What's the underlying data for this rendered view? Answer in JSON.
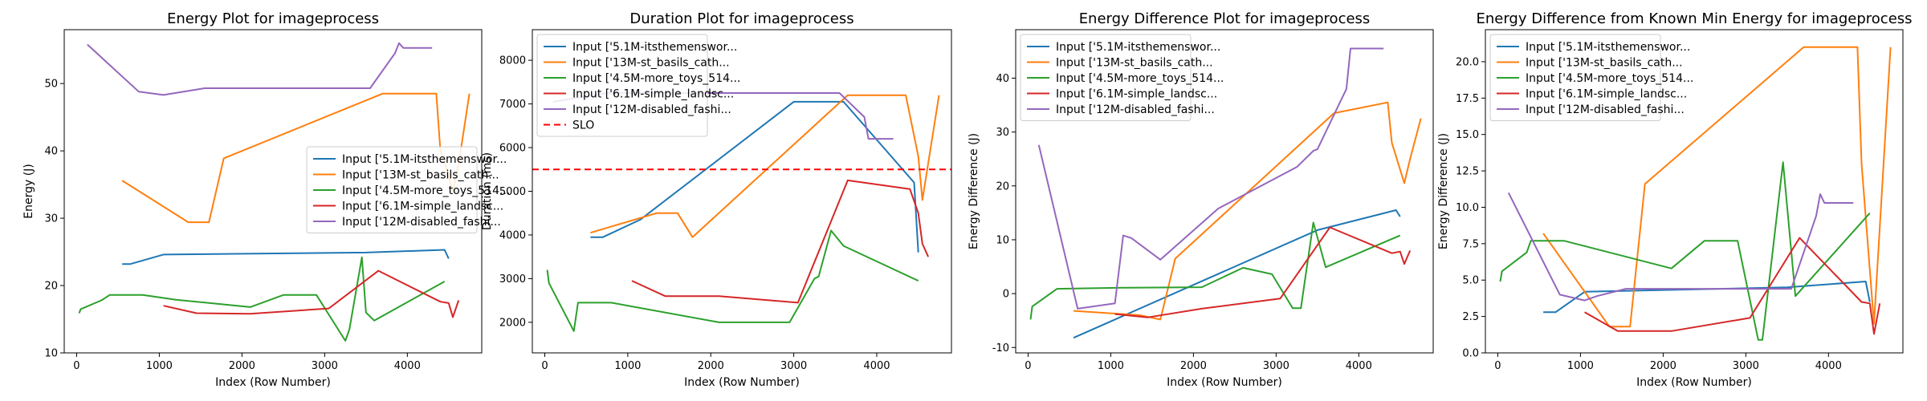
{
  "figure": {
    "name": "imageprocess energy dashboard"
  },
  "chart_data": [
    {
      "type": "line",
      "title": "Energy Plot for imageprocess",
      "xlabel": "Index (Row Number)",
      "ylabel": "Energy (J)",
      "xlim": [
        -150,
        4900
      ],
      "ylim": [
        10,
        58
      ],
      "xticks": [
        0,
        1000,
        2000,
        3000,
        4000
      ],
      "yticks": [
        10,
        20,
        30,
        40,
        50
      ],
      "legend_position": "center-right",
      "series": [
        {
          "name": "Input ['5.1M-itsthemenswor...",
          "color": "#1f77b4",
          "x": [
            550,
            650,
            1050,
            3500,
            4450,
            4500
          ],
          "y": [
            23.2,
            23.2,
            24.6,
            24.9,
            25.3,
            24.0
          ]
        },
        {
          "name": "Input ['13M-st_basils_cath...",
          "color": "#ff7f0e",
          "x": [
            550,
            1350,
            1600,
            1780,
            3700,
            4350,
            4400,
            4480,
            4550,
            4620,
            4750
          ],
          "y": [
            35.6,
            29.4,
            29.4,
            38.9,
            48.5,
            48.5,
            40.0,
            37.0,
            34.0,
            38.0,
            48.5
          ]
        },
        {
          "name": "Input ['4.5M-more_toys_514...",
          "color": "#2ca02c",
          "x": [
            30,
            50,
            300,
            400,
            800,
            1200,
            2100,
            2500,
            2900,
            3250,
            3300,
            3450,
            3500,
            3600,
            4450
          ],
          "y": [
            15.9,
            16.5,
            17.8,
            18.6,
            18.6,
            17.9,
            16.8,
            18.6,
            18.6,
            11.8,
            13.5,
            24.2,
            16.0,
            14.8,
            20.6
          ]
        },
        {
          "name": "Input ['6.1M-simple_landsc...",
          "color": "#d62728",
          "x": [
            1050,
            1450,
            2100,
            3050,
            3650,
            4400,
            4500,
            4550,
            4620
          ],
          "y": [
            17.0,
            15.9,
            15.8,
            16.6,
            22.2,
            17.6,
            17.4,
            15.3,
            17.8
          ]
        },
        {
          "name": "Input ['12M-disabled_fashi...",
          "color": "#9467bd",
          "x": [
            130,
            750,
            1050,
            1200,
            1550,
            3550,
            3850,
            3900,
            3950,
            4300
          ],
          "y": [
            55.8,
            48.8,
            48.3,
            48.6,
            49.3,
            49.3,
            54.5,
            56.0,
            55.3,
            55.3
          ]
        }
      ]
    },
    {
      "type": "line",
      "title": "Duration Plot for imageprocess",
      "xlabel": "Index (Row Number)",
      "ylabel": "Duration (ms)",
      "xlim": [
        -150,
        4900
      ],
      "ylim": [
        1300,
        8700
      ],
      "xticks": [
        0,
        1000,
        2000,
        3000,
        4000
      ],
      "yticks": [
        2000,
        3000,
        4000,
        5000,
        6000,
        7000,
        8000
      ],
      "legend_position": "top-left",
      "slo": {
        "name": "SLO",
        "value": 5500,
        "color": "#ff0000"
      },
      "series": [
        {
          "name": "Input ['5.1M-itsthemenswor...",
          "color": "#1f77b4",
          "x": [
            550,
            700,
            1150,
            3000,
            3600,
            4450,
            4500
          ],
          "y": [
            3950,
            3950,
            4350,
            7050,
            7050,
            5200,
            3600
          ]
        },
        {
          "name": "Input ['13M-st_basils_cath...",
          "color": "#ff7f0e",
          "x": [
            550,
            1350,
            1600,
            1780,
            3650,
            4350,
            4500,
            4550,
            4750
          ],
          "y": [
            4050,
            4500,
            4500,
            3950,
            7200,
            7200,
            5800,
            4800,
            7200
          ]
        },
        {
          "name": "Input ['4.5M-more_toys_514...",
          "color": "#2ca02c",
          "x": [
            30,
            50,
            350,
            400,
            800,
            2100,
            2950,
            3250,
            3300,
            3450,
            3600,
            4500
          ],
          "y": [
            3200,
            2900,
            1800,
            2450,
            2450,
            2000,
            2000,
            3000,
            3050,
            4100,
            3750,
            2950
          ]
        },
        {
          "name": "Input ['6.1M-simple_landsc...",
          "color": "#d62728",
          "x": [
            1050,
            1450,
            2100,
            3050,
            3650,
            4400,
            4500,
            4550,
            4620
          ],
          "y": [
            2950,
            2600,
            2600,
            2450,
            5250,
            5050,
            4500,
            3800,
            3500
          ]
        },
        {
          "name": "Input ['12M-disabled_fashi...",
          "color": "#9467bd",
          "x": [
            100,
            750,
            1550,
            3550,
            3850,
            3900,
            4200
          ],
          "y": [
            7050,
            7250,
            7250,
            7250,
            6700,
            6200,
            6200
          ]
        }
      ]
    },
    {
      "type": "line",
      "title": "Energy Difference Plot for imageprocess",
      "xlabel": "Index (Row Number)",
      "ylabel": "Energy Difference (J)",
      "xlim": [
        -150,
        4900
      ],
      "ylim": [
        -11,
        49
      ],
      "xticks": [
        0,
        1000,
        2000,
        3000,
        4000
      ],
      "yticks": [
        -10,
        0,
        10,
        20,
        30,
        40
      ],
      "legend_position": "top-left",
      "series": [
        {
          "name": "Input ['5.1M-itsthemenswor...",
          "color": "#1f77b4",
          "x": [
            550,
            3500,
            4450,
            4500
          ],
          "y": [
            -8.2,
            11.8,
            15.5,
            14.3
          ]
        },
        {
          "name": "Input ['13M-st_basils_cath...",
          "color": "#ff7f0e",
          "x": [
            550,
            1350,
            1600,
            1780,
            3700,
            4350,
            4400,
            4480,
            4550,
            4620,
            4750
          ],
          "y": [
            -3.2,
            -4.0,
            -4.8,
            6.5,
            33.5,
            35.5,
            28.0,
            24.0,
            20.5,
            25.0,
            32.5
          ]
        },
        {
          "name": "Input ['4.5M-more_toys_514...",
          "color": "#2ca02c",
          "x": [
            30,
            50,
            350,
            1200,
            2100,
            2600,
            2950,
            3200,
            3300,
            3450,
            3600,
            4500
          ],
          "y": [
            -4.8,
            -2.4,
            0.9,
            1.1,
            1.2,
            4.8,
            3.6,
            -2.7,
            -2.7,
            13.2,
            4.9,
            10.8
          ]
        },
        {
          "name": "Input ['6.1M-simple_landsc...",
          "color": "#d62728",
          "x": [
            1050,
            1450,
            2100,
            3050,
            3650,
            4400,
            4500,
            4550,
            4620
          ],
          "y": [
            -3.8,
            -4.4,
            -2.8,
            -0.9,
            12.3,
            7.5,
            7.8,
            5.5,
            8.0
          ]
        },
        {
          "name": "Input ['12M-disabled_fashi...",
          "color": "#9467bd",
          "x": [
            130,
            600,
            1050,
            1150,
            1250,
            1600,
            2300,
            3250,
            3450,
            3500,
            3850,
            3900,
            4300
          ],
          "y": [
            27.6,
            -2.8,
            -1.8,
            10.8,
            10.3,
            6.3,
            15.8,
            23.5,
            26.5,
            26.8,
            38.0,
            45.5,
            45.5
          ]
        }
      ]
    },
    {
      "type": "line",
      "title": "Energy Difference from Known Min Energy for imageprocess",
      "xlabel": "Index (Row Number)",
      "ylabel": "Energy Difference (J)",
      "xlim": [
        -150,
        4900
      ],
      "ylim": [
        0,
        22.2
      ],
      "xticks": [
        0,
        1000,
        2000,
        3000,
        4000
      ],
      "yticks": [
        0.0,
        2.5,
        5.0,
        7.5,
        10.0,
        12.5,
        15.0,
        17.5,
        20.0
      ],
      "legend_position": "top-left",
      "series": [
        {
          "name": "Input ['5.1M-itsthemenswor...",
          "color": "#1f77b4",
          "x": [
            550,
            700,
            1050,
            3500,
            4450,
            4500
          ],
          "y": [
            2.8,
            2.8,
            4.2,
            4.5,
            4.9,
            3.5
          ]
        },
        {
          "name": "Input ['13M-st_basils_cath...",
          "color": "#ff7f0e",
          "x": [
            550,
            1350,
            1600,
            1780,
            3700,
            4350,
            4400,
            4550,
            4750
          ],
          "y": [
            8.2,
            1.8,
            1.8,
            11.6,
            21.0,
            21.0,
            13.0,
            2.0,
            21.0
          ]
        },
        {
          "name": "Input ['4.5M-more_toys_514...",
          "color": "#2ca02c",
          "x": [
            30,
            50,
            350,
            400,
            800,
            2100,
            2500,
            2900,
            3150,
            3200,
            3450,
            3600,
            4500
          ],
          "y": [
            4.9,
            5.6,
            6.9,
            7.7,
            7.7,
            5.8,
            7.7,
            7.7,
            0.9,
            0.9,
            13.1,
            3.9,
            9.6
          ]
        },
        {
          "name": "Input ['6.1M-simple_landsc...",
          "color": "#d62728",
          "x": [
            1050,
            1450,
            2100,
            3050,
            3650,
            4400,
            4500,
            4550,
            4620
          ],
          "y": [
            2.8,
            1.5,
            1.5,
            2.4,
            7.9,
            3.5,
            3.4,
            1.3,
            3.4
          ]
        },
        {
          "name": "Input ['12M-disabled_fashi...",
          "color": "#9467bd",
          "x": [
            130,
            750,
            1050,
            1200,
            1550,
            3550,
            3850,
            3900,
            3950,
            4300
          ],
          "y": [
            11.0,
            4.0,
            3.6,
            3.9,
            4.4,
            4.4,
            9.4,
            10.9,
            10.3,
            10.3
          ]
        }
      ]
    }
  ]
}
